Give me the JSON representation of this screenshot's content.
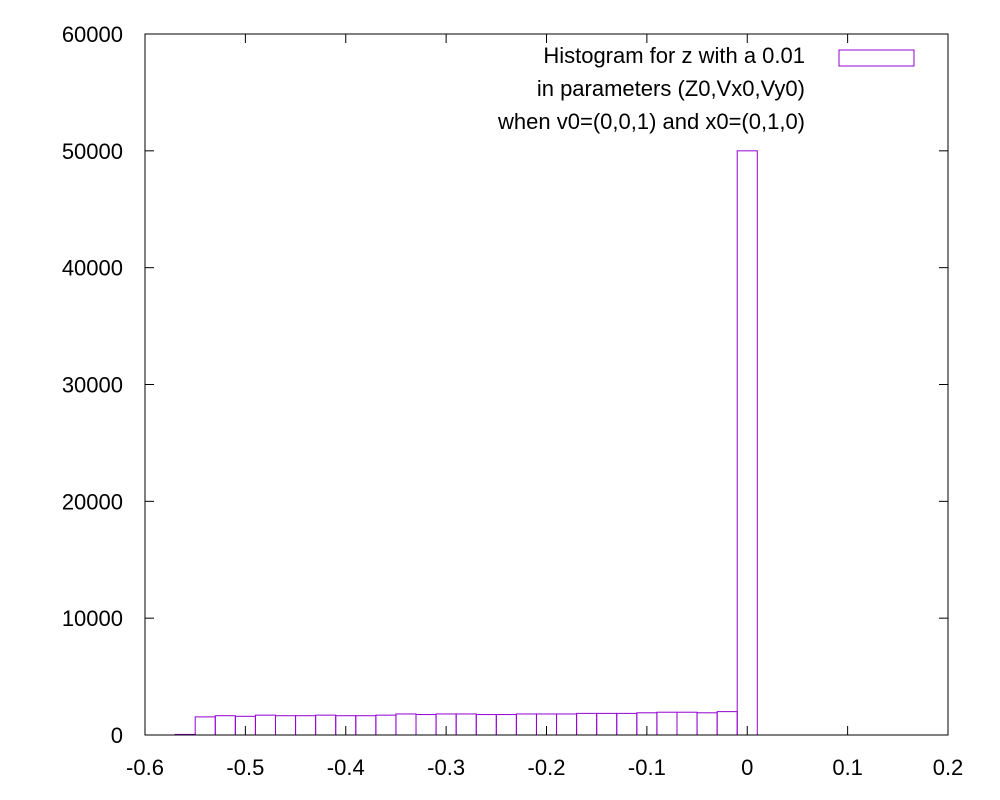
{
  "chart_data": {
    "type": "bar",
    "title": "",
    "xlabel": "",
    "ylabel": "",
    "xlim": [
      -0.6,
      0.2
    ],
    "ylim": [
      0,
      60000
    ],
    "x_ticks": [
      "-0.6",
      "-0.5",
      "-0.4",
      "-0.3",
      "-0.2",
      "-0.1",
      "0",
      "0.1",
      "0.2"
    ],
    "y_ticks": [
      "0",
      "10000",
      "20000",
      "30000",
      "40000",
      "50000",
      "60000"
    ],
    "bin_width": 0.02,
    "legend": {
      "lines": [
        "Histogram for z with a 0.01",
        "in parameters (Z0,Vx0,Vy0)",
        "when v0=(0,0,1) and x0=(0,1,0)"
      ],
      "position": "top-right"
    },
    "series": [
      {
        "color": "#9400d3",
        "bins": [
          {
            "x": -0.56,
            "value": 50
          },
          {
            "x": -0.54,
            "value": 1550
          },
          {
            "x": -0.52,
            "value": 1650
          },
          {
            "x": -0.5,
            "value": 1600
          },
          {
            "x": -0.48,
            "value": 1700
          },
          {
            "x": -0.46,
            "value": 1650
          },
          {
            "x": -0.44,
            "value": 1650
          },
          {
            "x": -0.42,
            "value": 1700
          },
          {
            "x": -0.4,
            "value": 1650
          },
          {
            "x": -0.38,
            "value": 1650
          },
          {
            "x": -0.36,
            "value": 1700
          },
          {
            "x": -0.34,
            "value": 1800
          },
          {
            "x": -0.32,
            "value": 1750
          },
          {
            "x": -0.3,
            "value": 1800
          },
          {
            "x": -0.28,
            "value": 1800
          },
          {
            "x": -0.26,
            "value": 1750
          },
          {
            "x": -0.24,
            "value": 1750
          },
          {
            "x": -0.22,
            "value": 1800
          },
          {
            "x": -0.2,
            "value": 1800
          },
          {
            "x": -0.18,
            "value": 1800
          },
          {
            "x": -0.16,
            "value": 1850
          },
          {
            "x": -0.14,
            "value": 1850
          },
          {
            "x": -0.12,
            "value": 1850
          },
          {
            "x": -0.1,
            "value": 1900
          },
          {
            "x": -0.08,
            "value": 1950
          },
          {
            "x": -0.06,
            "value": 1950
          },
          {
            "x": -0.04,
            "value": 1900
          },
          {
            "x": -0.02,
            "value": 2000
          },
          {
            "x": 0.0,
            "value": 50000
          }
        ]
      }
    ]
  }
}
